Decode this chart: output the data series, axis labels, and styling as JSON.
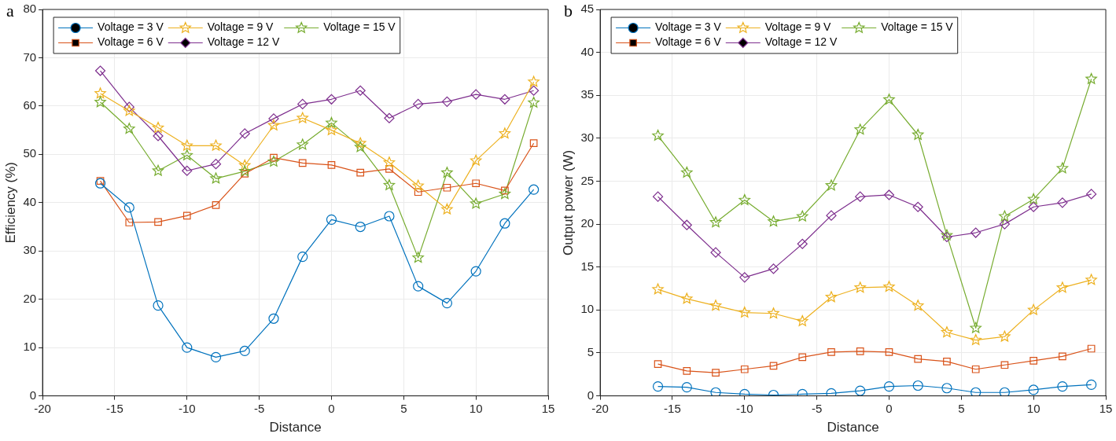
{
  "chart_data": [
    {
      "type": "line",
      "xlabel": "Distance",
      "ylabel": "Efficiency (%)",
      "annotations": [
        "a"
      ],
      "x": [
        -16,
        -14,
        -12,
        -10,
        -8,
        -6,
        -4,
        -2,
        0,
        2,
        4,
        6,
        8,
        10,
        12,
        14
      ],
      "xlim": [
        -20,
        15
      ],
      "xticks": [
        -20,
        -15,
        -10,
        -5,
        0,
        5,
        10,
        15
      ],
      "ylim": [
        0,
        80
      ],
      "yticks": [
        0,
        10,
        20,
        30,
        40,
        50,
        60,
        70,
        80
      ],
      "grid": true,
      "legend": "top left",
      "series": [
        {
          "name": "Voltage = 3 V",
          "color": "#0072bd",
          "marker": "circle",
          "values": [
            44,
            39,
            18.7,
            10,
            8,
            9.3,
            16,
            28.8,
            36.5,
            35,
            37.2,
            22.7,
            19.2,
            25.8,
            35.7,
            42.7
          ]
        },
        {
          "name": "Voltage = 6 V",
          "color": "#d95319",
          "marker": "square",
          "values": [
            44.5,
            35.9,
            36,
            37.3,
            39.5,
            46,
            49.3,
            48.2,
            47.8,
            46.2,
            47,
            42.2,
            43.1,
            44,
            42.5,
            52.3
          ]
        },
        {
          "name": "Voltage = 9 V",
          "color": "#edb120",
          "marker": "star",
          "values": [
            62.6,
            59,
            55.5,
            51.8,
            51.8,
            47.7,
            56,
            57.5,
            55,
            52.3,
            48.3,
            43.5,
            38.6,
            48.7,
            54.3,
            65
          ]
        },
        {
          "name": "Voltage = 12 V",
          "color": "#7e2f8e",
          "marker": "diamond",
          "values": [
            67.3,
            59.8,
            53.8,
            46.6,
            48,
            54.3,
            57.4,
            60.4,
            61.4,
            63.2,
            57.5,
            60.4,
            60.9,
            62.4,
            61.4,
            63.2
          ]
        },
        {
          "name": "Voltage = 15 V",
          "color": "#77ac30",
          "marker": "star",
          "values": [
            60.8,
            55.3,
            46.6,
            49.8,
            45,
            46.5,
            48.5,
            52,
            56.5,
            51.5,
            43.6,
            28.6,
            46.2,
            39.8,
            41.8,
            60.7
          ]
        }
      ]
    },
    {
      "type": "line",
      "xlabel": "Distance",
      "ylabel": "Output power (W)",
      "annotations": [
        "b"
      ],
      "x": [
        -16,
        -14,
        -12,
        -10,
        -8,
        -6,
        -4,
        -2,
        0,
        2,
        4,
        6,
        8,
        10,
        12,
        14
      ],
      "xlim": [
        -20,
        15
      ],
      "xticks": [
        -20,
        -15,
        -10,
        -5,
        0,
        5,
        10,
        15
      ],
      "ylim": [
        0,
        45
      ],
      "yticks": [
        0,
        5,
        10,
        15,
        20,
        25,
        30,
        35,
        40,
        45
      ],
      "grid": true,
      "legend": "top left",
      "series": [
        {
          "name": "Voltage = 3 V",
          "color": "#0072bd",
          "marker": "circle",
          "values": [
            1.1,
            1,
            0.4,
            0.2,
            0.1,
            0.2,
            0.3,
            0.6,
            1.1,
            1.2,
            0.9,
            0.4,
            0.4,
            0.7,
            1.1,
            1.3
          ]
        },
        {
          "name": "Voltage = 6 V",
          "color": "#d95319",
          "marker": "square",
          "values": [
            3.7,
            2.9,
            2.7,
            3.1,
            3.5,
            4.5,
            5.1,
            5.2,
            5.1,
            4.3,
            4,
            3.1,
            3.6,
            4.1,
            4.6,
            5.5
          ]
        },
        {
          "name": "Voltage = 9 V",
          "color": "#edb120",
          "marker": "star",
          "values": [
            12.4,
            11.3,
            10.5,
            9.7,
            9.6,
            8.7,
            11.5,
            12.6,
            12.7,
            10.5,
            7.4,
            6.5,
            6.9,
            10,
            12.6,
            13.5
          ]
        },
        {
          "name": "Voltage = 12 V",
          "color": "#7e2f8e",
          "marker": "diamond",
          "values": [
            23.2,
            19.9,
            16.7,
            13.8,
            14.8,
            17.7,
            21,
            23.2,
            23.4,
            22,
            18.5,
            19,
            20,
            22,
            22.5,
            23.5
          ]
        },
        {
          "name": "Voltage = 15 V",
          "color": "#77ac30",
          "marker": "star",
          "values": [
            30.3,
            26,
            20.2,
            22.8,
            20.3,
            20.9,
            24.5,
            31,
            34.5,
            30.4,
            18.7,
            7.9,
            20.9,
            22.9,
            26.5,
            36.9
          ]
        }
      ]
    }
  ]
}
